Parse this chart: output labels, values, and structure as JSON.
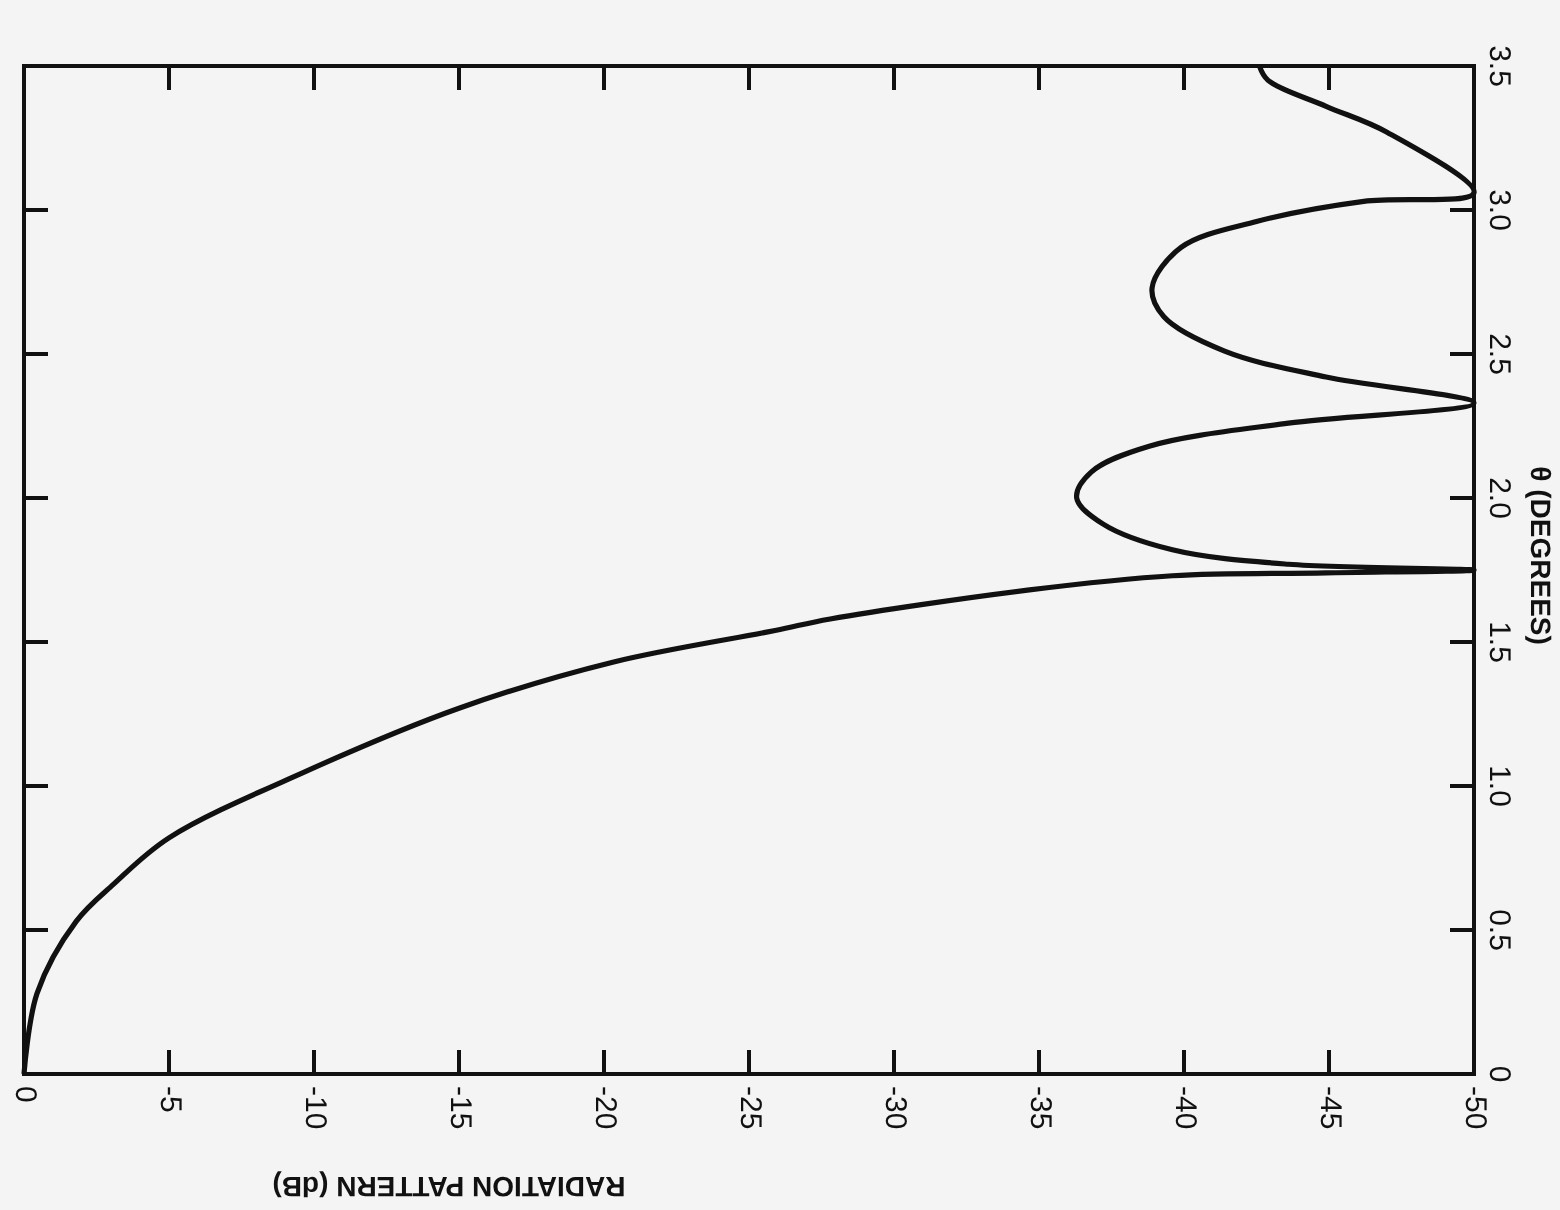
{
  "chart_data": {
    "type": "line",
    "xlabel": "RADIATION PATTERN (dB)",
    "ylabel": "θ (DEGREES)",
    "xlim": [
      0,
      -50
    ],
    "ylim": [
      0,
      3.5
    ],
    "xticks": [
      0,
      -5,
      -10,
      -15,
      -20,
      -25,
      -30,
      -35,
      -40,
      -45,
      -50
    ],
    "yticks": [
      0,
      {
        "value": 0.5,
        "label": "0.5"
      },
      {
        "value": 1,
        "label": "1.0"
      },
      {
        "value": 1.5,
        "label": "1.5"
      },
      {
        "value": 2,
        "label": "2.0"
      },
      {
        "value": 2.5,
        "label": "2.5"
      },
      {
        "value": 3,
        "label": "3.0"
      },
      {
        "value": 3.5,
        "label": "3.5"
      }
    ],
    "marker": "none",
    "line_style": "solid",
    "series": [
      {
        "color": "#111111",
        "x": [
          0,
          -0.45,
          -1.8,
          -3.1,
          -5,
          -9.7,
          -15,
          -20.3,
          -25.9,
          -27.8,
          -34.6,
          -39.6,
          -44.9,
          -50,
          -43.6,
          -39.6,
          -37.2,
          -36.3,
          -36.8,
          -38.8,
          -43.6,
          -50,
          -44.9,
          -41.4,
          -39.3,
          -38.9,
          -39.9,
          -42.5,
          -46.2,
          -50,
          -47,
          -44.9,
          -42.9,
          -42.6
        ],
        "values": [
          0,
          0.28,
          0.53,
          0.66,
          0.82,
          1.05,
          1.27,
          1.43,
          1.54,
          1.58,
          1.68,
          1.73,
          1.74,
          1.75,
          1.77,
          1.82,
          1.91,
          2,
          2.09,
          2.18,
          2.26,
          2.33,
          2.42,
          2.51,
          2.63,
          2.73,
          2.87,
          2.96,
          3.03,
          3.06,
          3.27,
          3.36,
          3.45,
          3.5
        ]
      }
    ]
  }
}
